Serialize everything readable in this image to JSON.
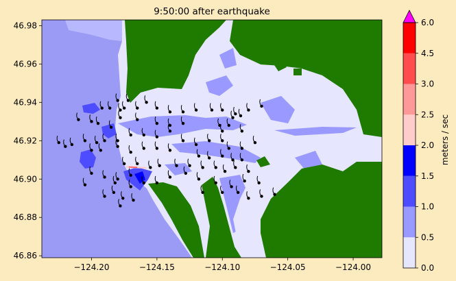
{
  "chart_data": {
    "type": "heatmap",
    "title": "9:50:00 after earthquake",
    "xlim": [
      -124.238,
      -123.978
    ],
    "ylim": [
      46.859,
      46.983
    ],
    "x_ticks": [
      {
        "value": -124.2,
        "label": "−124.20"
      },
      {
        "value": -124.15,
        "label": "−124.15"
      },
      {
        "value": -124.1,
        "label": "−124.10"
      },
      {
        "value": -124.05,
        "label": "−124.05"
      },
      {
        "value": -124.0,
        "label": "−124.00"
      }
    ],
    "y_ticks": [
      {
        "value": 46.86,
        "label": "46.86"
      },
      {
        "value": 46.88,
        "label": "46.88"
      },
      {
        "value": 46.9,
        "label": "46.90"
      },
      {
        "value": 46.92,
        "label": "46.92"
      },
      {
        "value": 46.94,
        "label": "46.94"
      },
      {
        "value": 46.96,
        "label": "46.96"
      },
      {
        "value": 46.98,
        "label": "46.98"
      }
    ],
    "colorbar": {
      "label": "meters / sec",
      "levels": [
        {
          "value": 0.0,
          "label": "0.0"
        },
        {
          "value": 0.5,
          "label": "0.5"
        },
        {
          "value": 1.0,
          "label": "1.0"
        },
        {
          "value": 1.5,
          "label": "1.5"
        },
        {
          "value": 2.0,
          "label": "2.0"
        },
        {
          "value": 2.5,
          "label": "2.5"
        },
        {
          "value": 3.0,
          "label": "3.0"
        },
        {
          "value": 4.5,
          "label": "4.5"
        },
        {
          "value": 6.0,
          "label": "6.0"
        }
      ],
      "colors": [
        "#e6e6ff",
        "#9999ff",
        "#4d4dff",
        "#0000ff",
        "#ffcccc",
        "#ff9999",
        "#ff4d4d",
        "#ff0000"
      ],
      "over_color": "#ff00ff"
    },
    "land_color": "#1f7a00",
    "offshore_color": "#9b9bf5",
    "gauge_points": [
      [
        -124.192,
        46.937
      ],
      [
        -124.186,
        46.937
      ],
      [
        -124.18,
        46.941
      ],
      [
        -124.178,
        46.936
      ],
      [
        -124.175,
        46.937
      ],
      [
        -124.172,
        46.941
      ],
      [
        -124.165,
        46.937
      ],
      [
        -124.158,
        46.94
      ],
      [
        -124.15,
        46.937
      ],
      [
        -124.14,
        46.935
      ],
      [
        -124.13,
        46.935
      ],
      [
        -124.12,
        46.936
      ],
      [
        -124.108,
        46.936
      ],
      [
        -124.1,
        46.936
      ],
      [
        -124.09,
        46.934
      ],
      [
        -124.08,
        46.936
      ],
      [
        -124.07,
        46.938
      ],
      [
        -124.092,
        46.932
      ],
      [
        -124.086,
        46.933
      ],
      [
        -124.21,
        46.931
      ],
      [
        -124.2,
        46.93
      ],
      [
        -124.195,
        46.929
      ],
      [
        -124.185,
        46.927
      ],
      [
        -124.178,
        46.932
      ],
      [
        -124.165,
        46.931
      ],
      [
        -124.15,
        46.929
      ],
      [
        -124.14,
        46.928
      ],
      [
        -124.13,
        46.929
      ],
      [
        -124.102,
        46.928
      ],
      [
        -124.095,
        46.928
      ],
      [
        -124.085,
        46.925
      ],
      [
        -124.1,
        46.925
      ],
      [
        -124.14,
        46.925
      ],
      [
        -124.15,
        46.922
      ],
      [
        -124.16,
        46.923
      ],
      [
        -124.17,
        46.923
      ],
      [
        -124.18,
        46.92
      ],
      [
        -124.19,
        46.92
      ],
      [
        -124.196,
        46.919
      ],
      [
        -124.205,
        46.92
      ],
      [
        -124.215,
        46.918
      ],
      [
        -124.22,
        46.917
      ],
      [
        -124.225,
        46.919
      ],
      [
        -124.2,
        46.915
      ],
      [
        -124.193,
        46.915
      ],
      [
        -124.18,
        46.917
      ],
      [
        -124.17,
        46.914
      ],
      [
        -124.16,
        46.916
      ],
      [
        -124.15,
        46.916
      ],
      [
        -124.14,
        46.915
      ],
      [
        -124.13,
        46.92
      ],
      [
        -124.12,
        46.918
      ],
      [
        -124.11,
        46.92
      ],
      [
        -124.1,
        46.92
      ],
      [
        -124.095,
        46.916
      ],
      [
        -124.085,
        46.916
      ],
      [
        -124.075,
        46.919
      ],
      [
        -124.118,
        46.912
      ],
      [
        -124.11,
        46.911
      ],
      [
        -124.1,
        46.912
      ],
      [
        -124.092,
        46.91
      ],
      [
        -124.085,
        46.91
      ],
      [
        -124.125,
        46.907
      ],
      [
        -124.115,
        46.906
      ],
      [
        -124.105,
        46.906
      ],
      [
        -124.098,
        46.904
      ],
      [
        -124.09,
        46.906
      ],
      [
        -124.08,
        46.904
      ],
      [
        -124.175,
        46.908
      ],
      [
        -124.165,
        46.908
      ],
      [
        -124.155,
        46.906
      ],
      [
        -124.148,
        46.907
      ],
      [
        -124.135,
        46.907
      ],
      [
        -124.128,
        46.903
      ],
      [
        -124.118,
        46.9
      ],
      [
        -124.105,
        46.898
      ],
      [
        -124.093,
        46.896
      ],
      [
        -124.083,
        46.899
      ],
      [
        -124.072,
        46.898
      ],
      [
        -124.18,
        46.9
      ],
      [
        -124.17,
        46.902
      ],
      [
        -124.16,
        46.898
      ],
      [
        -124.15,
        46.898
      ],
      [
        -124.14,
        46.901
      ],
      [
        -124.2,
        46.903
      ],
      [
        -124.19,
        46.901
      ],
      [
        -124.182,
        46.898
      ],
      [
        -124.17,
        46.896
      ],
      [
        -124.115,
        46.893
      ],
      [
        -124.1,
        46.893
      ],
      [
        -124.088,
        46.893
      ],
      [
        -124.08,
        46.89
      ],
      [
        -124.07,
        46.891
      ],
      [
        -124.06,
        46.892
      ],
      [
        -124.183,
        46.893
      ],
      [
        -124.176,
        46.89
      ],
      [
        -124.168,
        46.889
      ],
      [
        -124.178,
        46.886
      ],
      [
        -124.19,
        46.891
      ],
      [
        -124.205,
        46.897
      ]
    ]
  }
}
